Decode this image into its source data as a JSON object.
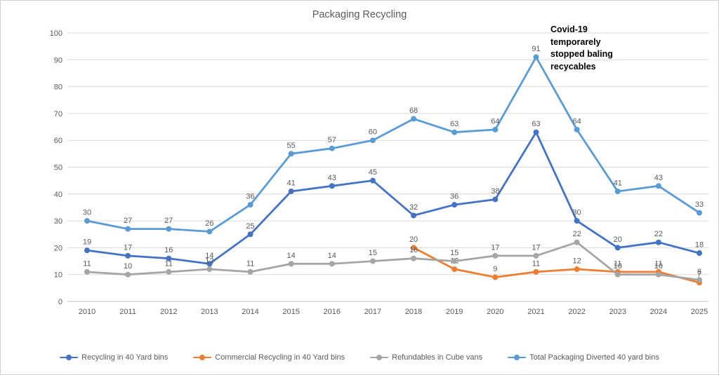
{
  "title": "Packaging Recycling",
  "annotation": {
    "text": "Covid-19\ntemporarely\nstopped baling\nrecycables"
  },
  "chart_data": {
    "type": "line",
    "title": "Packaging Recycling",
    "x": [
      "2010",
      "2011",
      "2012",
      "2013",
      "2014",
      "2015",
      "2016",
      "2017",
      "2018",
      "2019",
      "2020",
      "2021",
      "2022",
      "2023",
      "2024",
      "2025"
    ],
    "ylim": [
      0,
      100
    ],
    "yticks": [
      0,
      10,
      20,
      30,
      40,
      50,
      60,
      70,
      80,
      90,
      100
    ],
    "grid": true,
    "legend_position": "bottom",
    "colors": {
      "grid": "#D9D9D9",
      "axis": "#BFBFBF",
      "tick_text": "#595959",
      "data_label_text": "#595959"
    },
    "series": [
      {
        "name": "Recycling in 40 Yard bins",
        "color": "#4472C4",
        "values": [
          19,
          17,
          16,
          14,
          25,
          41,
          43,
          45,
          32,
          36,
          38,
          63,
          30,
          20,
          22,
          18
        ]
      },
      {
        "name": "Commercial Recycling in 40 Yard bins",
        "color": "#ED7D31",
        "values": [
          null,
          null,
          null,
          null,
          null,
          null,
          null,
          null,
          20,
          12,
          9,
          11,
          12,
          11,
          11,
          7
        ]
      },
      {
        "name": "Refundables in Cube vans",
        "color": "#A5A5A5",
        "values": [
          11,
          10,
          11,
          12,
          11,
          14,
          14,
          15,
          16,
          15,
          17,
          17,
          22,
          10,
          10,
          8
        ]
      },
      {
        "name": "Total Packaging Diverted 40 yard bins",
        "color": "#5B9BD5",
        "values": [
          30,
          27,
          27,
          26,
          36,
          55,
          57,
          60,
          68,
          63,
          64,
          91,
          64,
          41,
          43,
          33
        ]
      }
    ]
  }
}
